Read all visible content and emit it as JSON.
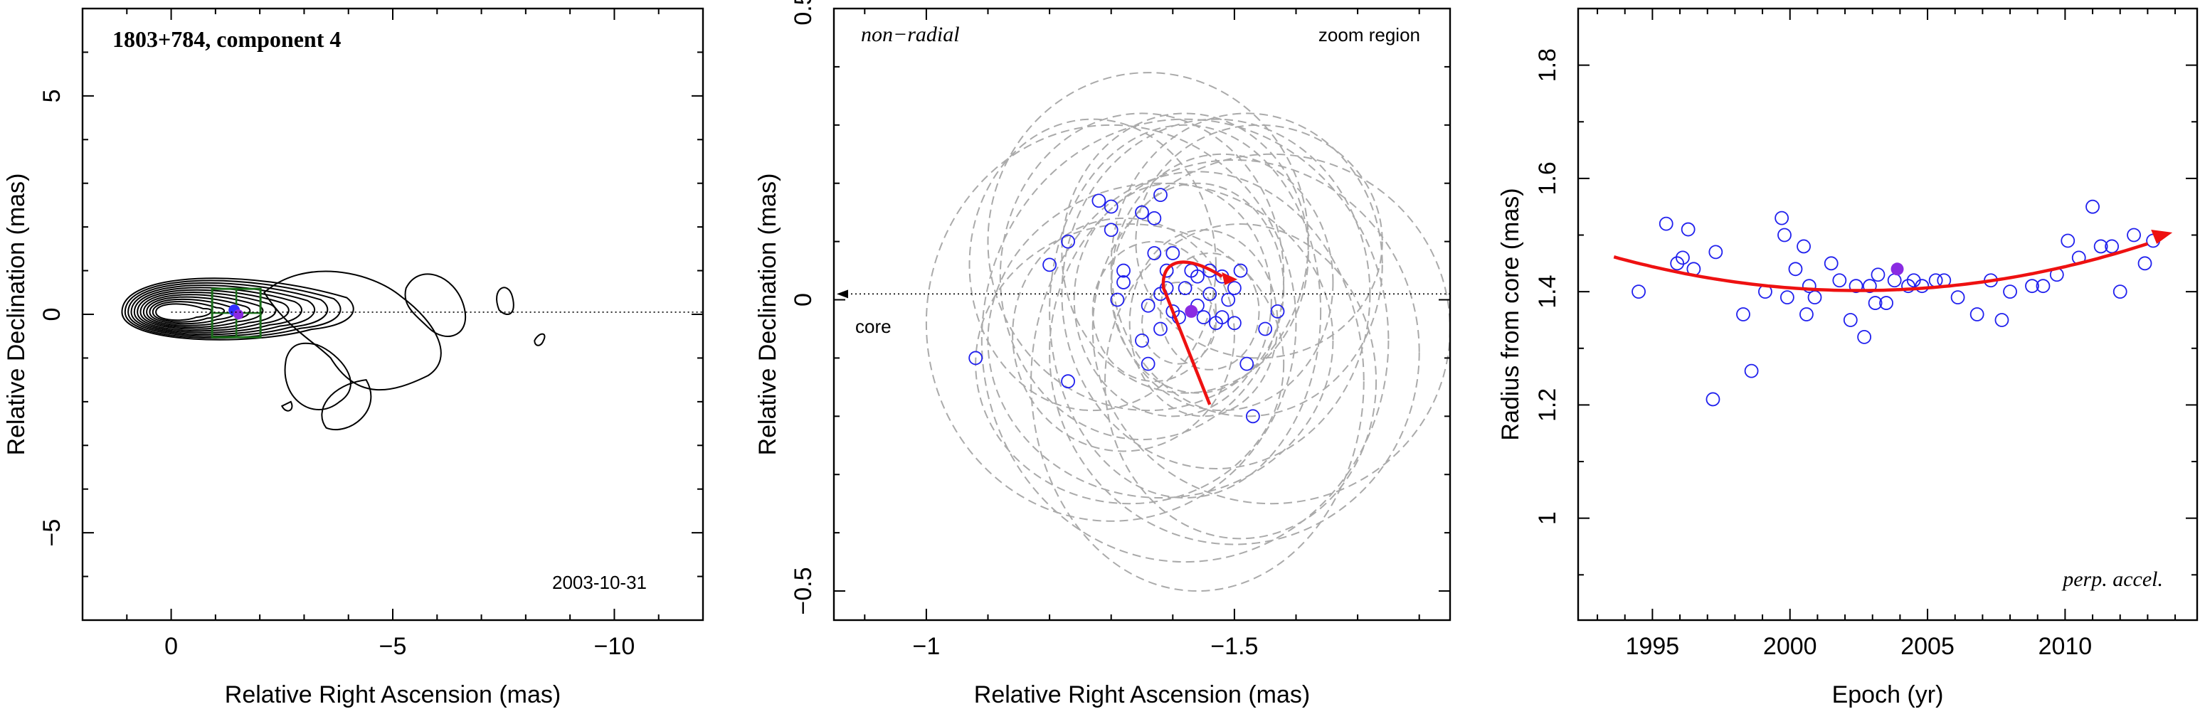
{
  "chart_data": [
    {
      "type": "contour",
      "title": "1803+784, component 4",
      "xlabel": "Relative Right Ascension (mas)",
      "ylabel": "Relative Declination (mas)",
      "xlim": [
        2,
        -12
      ],
      "ylim": [
        -7,
        7
      ],
      "xticks": [
        0,
        -5,
        -10
      ],
      "yticks": [
        -5,
        0,
        5
      ],
      "annotation": "2003-10-31",
      "component_position": [
        -1.47,
        0.03
      ],
      "colors": {
        "contour": "#000000",
        "box": "#1a6e1a",
        "component": "#3030ff",
        "highlight": "#8a2be2"
      }
    },
    {
      "type": "scatter",
      "xlabel": "Relative Right Ascension (mas)",
      "ylabel": "Relative Declination (mas)",
      "xlim": [
        -0.85,
        -1.85
      ],
      "ylim": [
        -0.55,
        0.5
      ],
      "xticks": [
        -1,
        -1.5
      ],
      "yticks": [
        -0.5,
        0,
        0.5
      ],
      "annotations": {
        "left_top": "non−radial",
        "right_top": "zoom region",
        "arrow_label": "core"
      },
      "points": [
        [
          -1.08,
          -0.1
        ],
        [
          -1.2,
          0.06
        ],
        [
          -1.23,
          0.1
        ],
        [
          -1.23,
          -0.14
        ],
        [
          -1.28,
          0.17
        ],
        [
          -1.3,
          0.16
        ],
        [
          -1.3,
          0.12
        ],
        [
          -1.32,
          0.05
        ],
        [
          -1.32,
          0.03
        ],
        [
          -1.31,
          0.0
        ],
        [
          -1.35,
          0.15
        ],
        [
          -1.37,
          0.14
        ],
        [
          -1.37,
          0.08
        ],
        [
          -1.38,
          0.18
        ],
        [
          -1.36,
          -0.01
        ],
        [
          -1.35,
          -0.07
        ],
        [
          -1.36,
          -0.11
        ],
        [
          -1.38,
          -0.05
        ],
        [
          -1.39,
          0.05
        ],
        [
          -1.39,
          0.02
        ],
        [
          -1.4,
          0.08
        ],
        [
          -1.41,
          -0.03
        ],
        [
          -1.42,
          0.02
        ],
        [
          -1.43,
          0.05
        ],
        [
          -1.44,
          0.04
        ],
        [
          -1.45,
          -0.03
        ],
        [
          -1.46,
          0.05
        ],
        [
          -1.47,
          -0.04
        ],
        [
          -1.48,
          0.04
        ],
        [
          -1.49,
          0.0
        ],
        [
          -1.5,
          0.02
        ],
        [
          -1.5,
          -0.04
        ],
        [
          -1.51,
          0.05
        ],
        [
          -1.52,
          -0.11
        ],
        [
          -1.53,
          -0.2
        ],
        [
          -1.55,
          -0.05
        ],
        [
          -1.57,
          -0.02
        ],
        [
          -1.38,
          0.01
        ],
        [
          -1.4,
          -0.02
        ],
        [
          -1.44,
          -0.01
        ],
        [
          -1.46,
          0.01
        ],
        [
          -1.48,
          -0.03
        ]
      ],
      "highlight_point": [
        -1.43,
        -0.02
      ],
      "trajectory_color": "#ee1111",
      "ellipse_color": "#aaaaaa"
    },
    {
      "type": "scatter",
      "xlabel": "Epoch (yr)",
      "ylabel": "Radius from core (mas)",
      "xlim": [
        1992.3,
        2014.8
      ],
      "ylim": [
        0.82,
        1.9
      ],
      "xticks": [
        1995,
        2000,
        2005,
        2010
      ],
      "yticks": [
        1,
        1.2,
        1.4,
        1.6,
        1.8
      ],
      "annotation": "perp. accel.",
      "series": [
        {
          "x": [
            1994.5,
            1995.5,
            1995.9,
            1996.1,
            1996.3,
            1996.5,
            1997.2,
            1997.3,
            1998.3,
            1998.6,
            1999.1,
            1999.7,
            1999.8,
            1999.9,
            2000.2,
            2000.5,
            2000.6,
            2000.7,
            2000.9,
            2001.5,
            2001.8,
            2002.2,
            2002.4,
            2002.7,
            2002.9,
            2003.1,
            2003.2,
            2003.5,
            2003.8,
            2004.3,
            2004.5,
            2004.8,
            2005.3,
            2005.6,
            2006.1,
            2006.8,
            2007.3,
            2007.7,
            2008.0,
            2008.8,
            2009.2,
            2009.7,
            2010.1,
            2010.5,
            2011.0,
            2011.3,
            2011.7,
            2012.0,
            2012.5,
            2012.9,
            2013.2
          ],
          "y": [
            1.4,
            1.52,
            1.45,
            1.46,
            1.51,
            1.44,
            1.21,
            1.47,
            1.36,
            1.26,
            1.4,
            1.53,
            1.5,
            1.39,
            1.44,
            1.48,
            1.36,
            1.41,
            1.39,
            1.45,
            1.42,
            1.35,
            1.41,
            1.32,
            1.41,
            1.38,
            1.43,
            1.38,
            1.42,
            1.41,
            1.42,
            1.41,
            1.42,
            1.42,
            1.39,
            1.36,
            1.42,
            1.35,
            1.4,
            1.41,
            1.41,
            1.43,
            1.49,
            1.46,
            1.55,
            1.48,
            1.48,
            1.4,
            1.5,
            1.45,
            1.49
          ]
        }
      ],
      "highlight_point": [
        2003.9,
        1.44
      ],
      "fit_curve_color": "#ee1111"
    }
  ]
}
